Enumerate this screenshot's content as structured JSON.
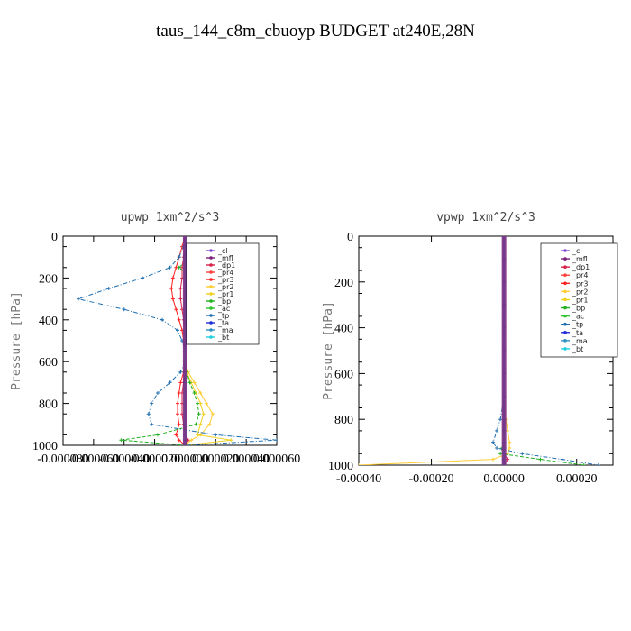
{
  "title": "taus_144_c8m_cbuoyp  BUDGET at240E,28N",
  "chart_data": [
    {
      "type": "line",
      "title": "upwp   1xm^2/s^3",
      "ylabel": "Pressure [hPa]",
      "xlabel": "",
      "xlim": [
        -8e-05,
        6e-05
      ],
      "ylim": [
        1000,
        0
      ],
      "x_ticks": [
        "-0.000080",
        "-0.000060",
        "-0.000040",
        "-0.000020",
        "0.000000",
        "0.000020",
        "0.000040",
        "0.000060"
      ],
      "y_ticks": [
        "0",
        "200",
        "400",
        "600",
        "800",
        "1000"
      ],
      "legend_position": "top-right",
      "y": [
        0,
        50,
        100,
        150,
        200,
        250,
        300,
        350,
        400,
        450,
        500,
        550,
        600,
        650,
        700,
        750,
        800,
        850,
        900,
        950,
        975,
        1000
      ],
      "series": [
        {
          "name": "_cl",
          "color": "#8a4fd6",
          "values": [
            0,
            0,
            0,
            0,
            0,
            0,
            0,
            0,
            0,
            0,
            0,
            0,
            0,
            0,
            0,
            0,
            0,
            0,
            0,
            0,
            0,
            0
          ]
        },
        {
          "name": "_mfl",
          "color": "#7a1f7a",
          "values": [
            0,
            0,
            0,
            0,
            0,
            0,
            0,
            0,
            0,
            0,
            0,
            0,
            0,
            0,
            0,
            0,
            0,
            0,
            0,
            0,
            0,
            0
          ]
        },
        {
          "name": "_dp1",
          "color": "#d6204a",
          "values": [
            0,
            0,
            -1e-06,
            -2e-06,
            -2e-06,
            -3e-06,
            -3e-06,
            -2e-06,
            -1e-06,
            0,
            0,
            0,
            0,
            0,
            -1e-06,
            -2e-06,
            -2e-06,
            -2e-06,
            -1e-06,
            0,
            2e-06,
            0
          ]
        },
        {
          "name": "_pr4",
          "color": "#ff4040",
          "values": [
            0,
            0,
            0,
            0,
            0,
            0,
            0,
            0,
            0,
            0,
            0,
            0,
            0,
            0,
            0,
            0,
            0,
            0,
            0,
            0,
            0,
            0
          ]
        },
        {
          "name": "_pr3",
          "color": "#ff2020",
          "values": [
            0,
            -2e-06,
            -4e-06,
            -6e-06,
            -8e-06,
            -9e-06,
            -8e-06,
            -6e-06,
            -4e-06,
            -2e-06,
            -1e-06,
            0,
            0,
            -1e-06,
            -3e-06,
            -4e-06,
            -5e-06,
            -5e-06,
            -4e-06,
            -6e-06,
            -4e-06,
            0
          ]
        },
        {
          "name": "_pr2",
          "color": "#ffcc33",
          "values": [
            0,
            1e-06,
            3e-06,
            6e-06,
            1e-05,
            1.5e-05,
            2.2e-05,
            1.6e-05,
            8e-06,
            3e-06,
            1e-06,
            0,
            0,
            2e-06,
            6e-06,
            1e-05,
            1.4e-05,
            1.8e-05,
            1.6e-05,
            1e-05,
            4e-06,
            0
          ]
        },
        {
          "name": "_pr1",
          "color": "#f0d020",
          "values": [
            0,
            1e-06,
            2e-06,
            4e-06,
            7e-06,
            1e-05,
            1.2e-05,
            9e-06,
            5e-06,
            2e-06,
            1e-06,
            0,
            0,
            1e-06,
            4e-06,
            7e-06,
            1e-05,
            1.2e-05,
            1e-05,
            8e-06,
            3e-05,
            0
          ]
        },
        {
          "name": "_bp",
          "color": "#20b020",
          "values": [
            0,
            1e-06,
            3e-06,
            -4e-06,
            5e-06,
            1.8e-05,
            3e-05,
            2e-05,
            1e-05,
            4e-06,
            1e-06,
            0,
            0,
            1e-06,
            3e-06,
            6e-06,
            8e-06,
            9e-06,
            7e-06,
            -1.8e-05,
            -4.2e-05,
            0
          ]
        },
        {
          "name": "_ac",
          "color": "#2fc42f",
          "values": [
            0,
            0,
            0,
            0,
            0,
            0,
            0,
            0,
            0,
            0,
            0,
            0,
            0,
            0,
            0,
            0,
            0,
            0,
            0,
            0,
            0,
            0
          ]
        },
        {
          "name": "_tp",
          "color": "#1f6fb0",
          "values": [
            0,
            -1e-06,
            -4e-06,
            -1e-05,
            -2.8e-05,
            -5e-05,
            -7e-05,
            -4e-05,
            -1.5e-05,
            -5e-06,
            -2e-06,
            0,
            0,
            -3e-06,
            -1e-05,
            -1.8e-05,
            -2.2e-05,
            -2.4e-05,
            -2.2e-05,
            2e-05,
            6e-05,
            0
          ]
        },
        {
          "name": "_ta",
          "color": "#1f2fd6",
          "values": [
            0,
            0,
            0,
            0,
            0,
            0,
            0,
            0,
            0,
            0,
            0,
            0,
            0,
            0,
            0,
            0,
            0,
            0,
            0,
            0,
            0,
            0
          ]
        },
        {
          "name": "_ma",
          "color": "#3090c0",
          "values": [
            0,
            0,
            0,
            0,
            0,
            0,
            0,
            0,
            0,
            0,
            0,
            0,
            0,
            0,
            0,
            0,
            0,
            0,
            0,
            0,
            0,
            0
          ]
        },
        {
          "name": "_bt",
          "color": "#20d0e0",
          "values": [
            0,
            0,
            0,
            0,
            0,
            0,
            0,
            0,
            0,
            0,
            0,
            0,
            0,
            0,
            0,
            0,
            0,
            0,
            0,
            0,
            0,
            0
          ]
        }
      ]
    },
    {
      "type": "line",
      "title": "vpwp   1xm^2/s^3",
      "ylabel": "Pressure [hPa]",
      "xlabel": "",
      "xlim": [
        -0.0004,
        0.0003
      ],
      "ylim": [
        1000,
        0
      ],
      "x_ticks": [
        "-0.00040",
        "-0.00020",
        "0.00000",
        "0.00020"
      ],
      "y_ticks": [
        "0",
        "200",
        "400",
        "600",
        "800",
        "1000"
      ],
      "legend_position": "top-right",
      "y": [
        0,
        100,
        200,
        300,
        400,
        500,
        600,
        700,
        800,
        850,
        900,
        925,
        950,
        975,
        1000
      ],
      "series": [
        {
          "name": "_cl",
          "color": "#8a4fd6",
          "values": [
            0,
            0,
            0,
            0,
            0,
            0,
            0,
            0,
            0,
            0,
            0,
            0,
            0,
            0,
            0
          ]
        },
        {
          "name": "_mfl",
          "color": "#7a1f7a",
          "values": [
            0,
            0,
            0,
            0,
            0,
            0,
            0,
            0,
            0,
            0,
            0,
            0,
            0,
            0,
            0
          ]
        },
        {
          "name": "_dp1",
          "color": "#d6204a",
          "values": [
            0,
            0,
            0,
            0,
            0,
            0,
            0,
            0,
            0,
            0,
            0,
            0,
            0,
            1e-05,
            0
          ]
        },
        {
          "name": "_pr4",
          "color": "#ff4040",
          "values": [
            0,
            0,
            0,
            0,
            0,
            0,
            0,
            0,
            0,
            0,
            0,
            0,
            0,
            0,
            0
          ]
        },
        {
          "name": "_pr3",
          "color": "#ff2020",
          "values": [
            0,
            0,
            0,
            0,
            0,
            0,
            0,
            0,
            0,
            0,
            0,
            0,
            0,
            0,
            0
          ]
        },
        {
          "name": "_pr2",
          "color": "#ffcc33",
          "values": [
            0,
            0,
            0,
            0,
            0,
            0,
            0,
            0,
            5e-06,
            1e-05,
            1.5e-05,
            1.5e-05,
            1e-05,
            -3e-05,
            -0.0004
          ]
        },
        {
          "name": "_pr1",
          "color": "#f0d020",
          "values": [
            0,
            0,
            0,
            0,
            0,
            0,
            0,
            0,
            0,
            0,
            0,
            0,
            0,
            0,
            0
          ]
        },
        {
          "name": "_bp",
          "color": "#20b020",
          "values": [
            0,
            0,
            0,
            0,
            0,
            0,
            0,
            0,
            0,
            0,
            0,
            -5e-06,
            -1e-05,
            0.0001,
            0.00022
          ]
        },
        {
          "name": "_ac",
          "color": "#2fc42f",
          "values": [
            0,
            0,
            0,
            0,
            0,
            0,
            0,
            0,
            0,
            0,
            0,
            0,
            0,
            0,
            0
          ]
        },
        {
          "name": "_tp",
          "color": "#1f6fb0",
          "values": [
            0,
            0,
            0,
            0,
            0,
            0,
            0,
            0,
            -1e-05,
            -2e-05,
            -3e-05,
            -2e-05,
            5e-05,
            0.00016,
            0.00026
          ]
        },
        {
          "name": "_ta",
          "color": "#1f2fd6",
          "values": [
            0,
            0,
            0,
            0,
            0,
            0,
            0,
            0,
            0,
            0,
            0,
            0,
            0,
            0,
            0
          ]
        },
        {
          "name": "_ma",
          "color": "#3090c0",
          "values": [
            0,
            0,
            0,
            0,
            0,
            0,
            0,
            0,
            0,
            0,
            0,
            0,
            0,
            0,
            0
          ]
        },
        {
          "name": "_bt",
          "color": "#20d0e0",
          "values": [
            0,
            0,
            0,
            0,
            0,
            0,
            0,
            0,
            0,
            0,
            0,
            0,
            0,
            0,
            0
          ]
        }
      ]
    }
  ]
}
